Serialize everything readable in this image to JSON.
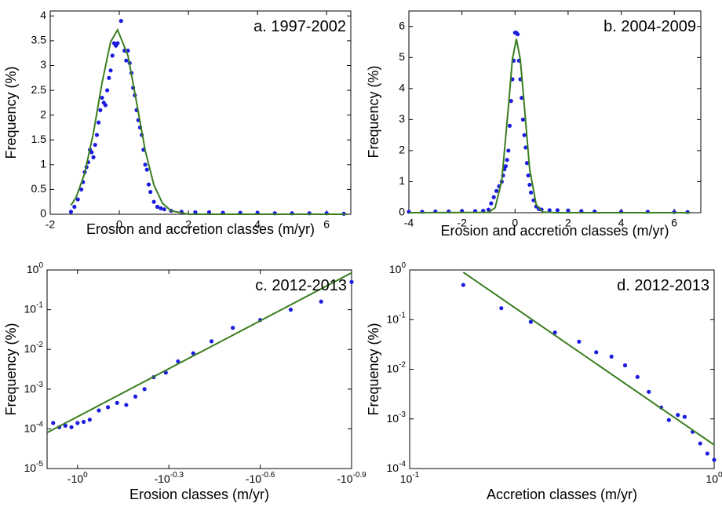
{
  "chart_data": [
    {
      "type": "scatter",
      "title": "a. 1997-2002",
      "xlabel": "Erosion and accretion classes (m/yr)",
      "ylabel": "Frequency (%)",
      "xlim": [
        -2,
        6.7
      ],
      "ylim": [
        0,
        4.1
      ],
      "xticks": [
        -2,
        0,
        2,
        4,
        6
      ],
      "yticks": [
        0,
        0.5,
        1,
        1.5,
        2,
        2.5,
        3,
        3.5,
        4
      ],
      "series": [
        {
          "mode": "markers",
          "color": "#1c1ce0",
          "x": [
            -1.4,
            -1.3,
            -1.2,
            -1.1,
            -1.05,
            -1.0,
            -0.95,
            -0.9,
            -0.85,
            -0.8,
            -0.75,
            -0.7,
            -0.65,
            -0.6,
            -0.55,
            -0.5,
            -0.45,
            -0.4,
            -0.35,
            -0.3,
            -0.25,
            -0.2,
            -0.15,
            -0.1,
            -0.05,
            0.05,
            0.15,
            0.2,
            0.25,
            0.3,
            0.35,
            0.4,
            0.45,
            0.5,
            0.55,
            0.6,
            0.65,
            0.7,
            0.75,
            0.8,
            0.85,
            0.9,
            1.0,
            1.1,
            1.2,
            1.3,
            1.5,
            1.8,
            2.2,
            2.6,
            3.0,
            3.5,
            4.0,
            4.5,
            5.0,
            5.5,
            6.0,
            6.5
          ],
          "values": [
            0.05,
            0.15,
            0.3,
            0.5,
            0.65,
            0.85,
            0.95,
            1.05,
            1.3,
            1.25,
            1.15,
            1.4,
            1.6,
            1.85,
            2.1,
            2.35,
            2.25,
            2.2,
            2.5,
            2.75,
            2.9,
            3.2,
            3.45,
            3.4,
            3.45,
            3.9,
            3.3,
            3.1,
            3.3,
            3.05,
            2.85,
            2.55,
            2.4,
            2.1,
            1.9,
            1.75,
            1.6,
            1.3,
            1.0,
            0.9,
            0.6,
            0.45,
            0.25,
            0.15,
            0.12,
            0.1,
            0.07,
            0.05,
            0.04,
            0.04,
            0.03,
            0.03,
            0.03,
            0.02,
            0.02,
            0.02,
            0.02,
            0.01
          ]
        },
        {
          "mode": "line",
          "color": "#3a7d1e",
          "x": [
            -1.4,
            -1.25,
            -1.0,
            -0.75,
            -0.5,
            -0.25,
            -0.05,
            0.25,
            0.5,
            0.75,
            1.0,
            1.25,
            1.5,
            2.0,
            6.6
          ],
          "values": [
            0.18,
            0.34,
            0.83,
            1.64,
            2.65,
            3.48,
            3.72,
            3.2,
            2.25,
            1.28,
            0.59,
            0.22,
            0.07,
            0,
            0
          ]
        }
      ]
    },
    {
      "type": "scatter",
      "title": "b. 2004-2009",
      "xlabel": "Erosion and accretion classes (m/yr)",
      "ylabel": "Frequency (%)",
      "xlim": [
        -4,
        7
      ],
      "ylim": [
        0,
        6.5
      ],
      "xticks": [
        -4,
        -2,
        0,
        2,
        4,
        6
      ],
      "yticks": [
        0,
        1,
        2,
        3,
        4,
        5,
        6
      ],
      "series": [
        {
          "mode": "markers",
          "color": "#1c1ce0",
          "x": [
            -4,
            -3.5,
            -3,
            -2.5,
            -2,
            -1.5,
            -1.2,
            -1.0,
            -0.9,
            -0.8,
            -0.7,
            -0.6,
            -0.5,
            -0.45,
            -0.4,
            -0.35,
            -0.3,
            -0.25,
            -0.2,
            -0.15,
            -0.1,
            -0.05,
            0,
            0.05,
            0.1,
            0.15,
            0.2,
            0.25,
            0.3,
            0.35,
            0.4,
            0.45,
            0.5,
            0.55,
            0.6,
            0.7,
            0.8,
            0.9,
            1.0,
            1.3,
            1.6,
            2.0,
            2.5,
            3.0,
            4.0,
            5.0,
            6.0,
            6.5
          ],
          "values": [
            0.03,
            0.03,
            0.04,
            0.04,
            0.05,
            0.05,
            0.06,
            0.1,
            0.3,
            0.5,
            0.7,
            0.85,
            1.0,
            1.2,
            1.4,
            1.5,
            1.7,
            2.0,
            2.8,
            3.6,
            4.3,
            4.9,
            5.8,
            5.8,
            5.75,
            4.9,
            4.3,
            3.7,
            3.0,
            2.5,
            2.1,
            1.6,
            1.2,
            0.9,
            0.65,
            0.4,
            0.2,
            0.12,
            0.1,
            0.08,
            0.08,
            0.07,
            0.05,
            0.04,
            0.03,
            0.03,
            0.02,
            0.02
          ]
        },
        {
          "mode": "line",
          "color": "#3a7d1e",
          "x": [
            -4,
            -1.0,
            -0.75,
            -0.5,
            -0.25,
            -0.1,
            0.05,
            0.2,
            0.3,
            0.55,
            0.8,
            1.05,
            1.5,
            6.6
          ],
          "values": [
            0,
            0.01,
            0.16,
            1.04,
            3.4,
            4.94,
            5.6,
            4.94,
            3.96,
            1.4,
            0.25,
            0.02,
            0,
            0
          ]
        }
      ]
    },
    {
      "type": "scatter",
      "title": "c. 2012-2013",
      "xlabel": "Erosion classes (m/yr)",
      "ylabel": "Frequency (%)",
      "ylog": true,
      "xlim": [
        0.1,
        -0.9
      ],
      "ylim": [
        1e-05,
        1
      ],
      "xticks": [
        {
          "value": 0,
          "label": "-10^0"
        },
        {
          "value": -0.3,
          "label": "-10^-0.3"
        },
        {
          "value": -0.6,
          "label": "-10^-0.6"
        },
        {
          "value": -0.9,
          "label": "-10^-0.9"
        }
      ],
      "yticks": [
        {
          "value": 1e-05,
          "label": "10^-5"
        },
        {
          "value": 0.0001,
          "label": "10^-4"
        },
        {
          "value": 0.001,
          "label": "10^-3"
        },
        {
          "value": 0.01,
          "label": "10^-2"
        },
        {
          "value": 0.1,
          "label": "10^-1"
        },
        {
          "value": 1,
          "label": "10^0"
        }
      ],
      "series": [
        {
          "mode": "markers",
          "color": "#1c1ce0",
          "x": [
            0.08,
            0.06,
            0.04,
            0.02,
            0.0,
            -0.02,
            -0.04,
            -0.07,
            -0.1,
            -0.13,
            -0.16,
            -0.19,
            -0.22,
            -0.25,
            -0.29,
            -0.33,
            -0.38,
            -0.44,
            -0.51,
            -0.6,
            -0.7,
            -0.8,
            -0.9
          ],
          "values": [
            0.00014,
            0.00011,
            0.00012,
            0.00011,
            0.00014,
            0.00015,
            0.00017,
            0.00029,
            0.00035,
            0.00045,
            0.0004,
            0.00065,
            0.001,
            0.002,
            0.0026,
            0.005,
            0.008,
            0.016,
            0.035,
            0.055,
            0.1,
            0.16,
            0.5
          ]
        },
        {
          "mode": "line",
          "color": "#3a7d1e",
          "x": [
            0.1,
            -0.9
          ],
          "values": [
            8e-05,
            0.85
          ]
        }
      ]
    },
    {
      "type": "scatter",
      "title": "d. 2012-2013",
      "xlabel": "Accretion classes (m/yr)",
      "ylabel": "Frequency (%)",
      "xlog": true,
      "ylog": true,
      "xlim": [
        0.1,
        1
      ],
      "ylim": [
        0.0001,
        1
      ],
      "xticks": [
        {
          "value": 0.1,
          "label": "10^-1"
        },
        {
          "value": 1,
          "label": "10^0"
        }
      ],
      "yticks": [
        {
          "value": 0.0001,
          "label": "10^-4"
        },
        {
          "value": 0.001,
          "label": "10^-3"
        },
        {
          "value": 0.01,
          "label": "10^-2"
        },
        {
          "value": 0.1,
          "label": "10^-1"
        },
        {
          "value": 1,
          "label": "10^0"
        }
      ],
      "series": [
        {
          "mode": "markers",
          "color": "#1c1ce0",
          "x": [
            0.15,
            0.2,
            0.25,
            0.3,
            0.36,
            0.41,
            0.46,
            0.51,
            0.56,
            0.61,
            0.67,
            0.71,
            0.76,
            0.8,
            0.85,
            0.9,
            0.95,
            1.0
          ],
          "values": [
            0.5,
            0.17,
            0.09,
            0.055,
            0.036,
            0.022,
            0.018,
            0.012,
            0.007,
            0.0035,
            0.0017,
            0.00095,
            0.0012,
            0.0011,
            0.00055,
            0.00032,
            0.0002,
            0.00015
          ]
        },
        {
          "mode": "line",
          "color": "#3a7d1e",
          "x": [
            0.15,
            1
          ],
          "values": [
            0.9,
            0.0003
          ]
        }
      ]
    }
  ]
}
